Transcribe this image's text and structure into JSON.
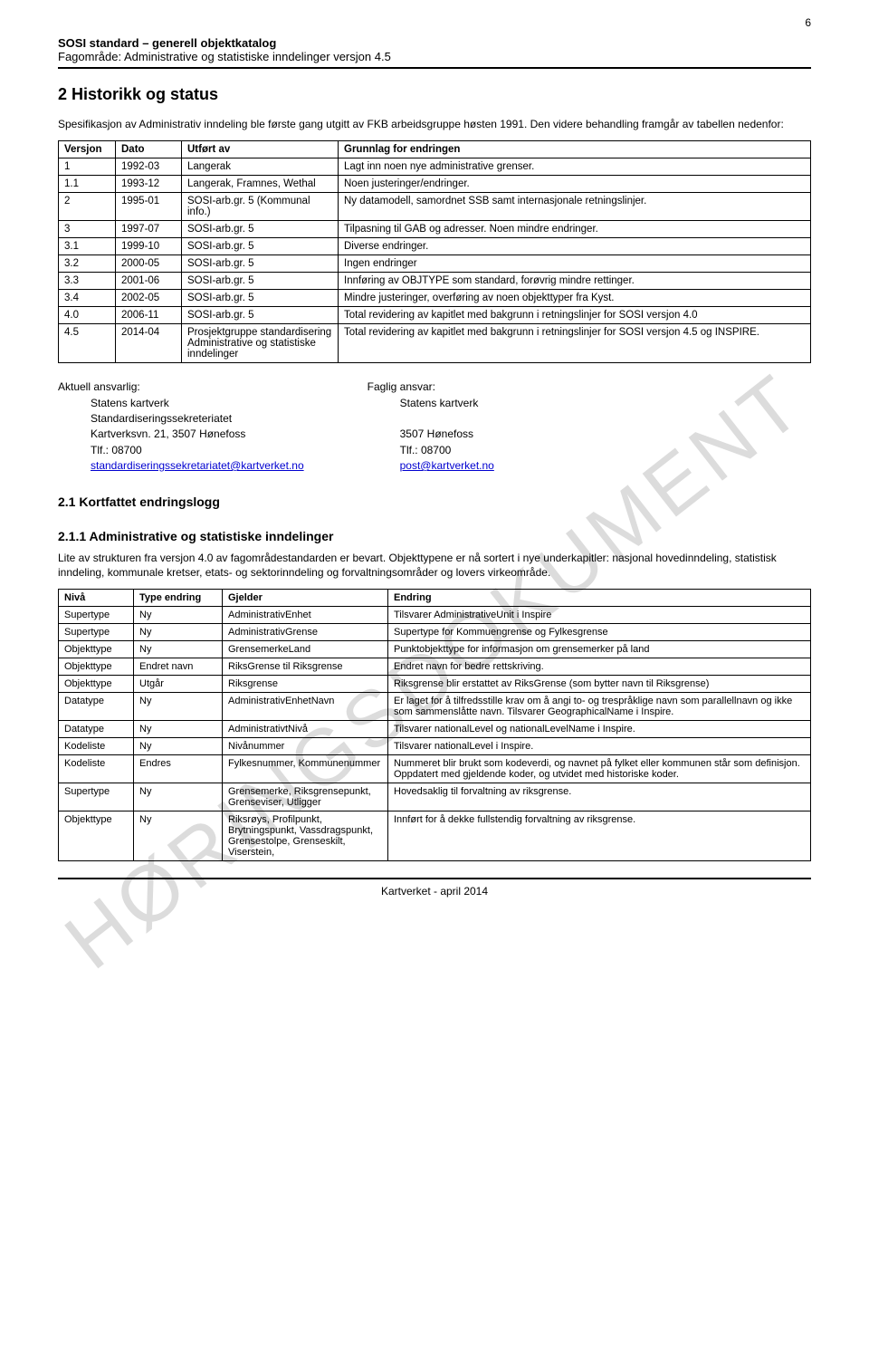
{
  "page_number": "6",
  "header": {
    "line1": "SOSI standard – generell objektkatalog",
    "line2": "Fagområde: Administrative og statistiske inndelinger versjon 4.5"
  },
  "watermark": "HØRINGSDOKUMENT",
  "section2": {
    "title": "2  Historikk og status",
    "intro": "Spesifikasjon av Administrativ inndeling ble første gang utgitt av FKB arbeidsgruppe høsten 1991. Den videre behandling framgår av tabellen nedenfor:"
  },
  "version_table": {
    "columns": [
      "Versjon",
      "Dato",
      "Utført av",
      "Grunnlag for endringen"
    ],
    "col_widths": [
      "50px",
      "60px",
      "160px",
      "auto"
    ],
    "rows": [
      [
        "1",
        "1992-03",
        "Langerak",
        "Lagt inn noen nye administrative grenser."
      ],
      [
        "1.1",
        "1993-12",
        "Langerak, Framnes, Wethal",
        "Noen justeringer/endringer."
      ],
      [
        "2",
        "1995-01",
        "SOSI-arb.gr. 5 (Kommunal info.)",
        "Ny datamodell, samordnet SSB samt internasjonale retningslinjer."
      ],
      [
        "3",
        "1997-07",
        "SOSI-arb.gr. 5",
        "Tilpasning til GAB og adresser. Noen mindre endringer."
      ],
      [
        "3.1",
        "1999-10",
        "SOSI-arb.gr. 5",
        "Diverse endringer."
      ],
      [
        "3.2",
        "2000-05",
        "SOSI-arb.gr. 5",
        "Ingen endringer"
      ],
      [
        "3.3",
        "2001-06",
        "SOSI-arb.gr. 5",
        "Innføring av OBJTYPE som standard, forøvrig mindre rettinger."
      ],
      [
        "3.4",
        "2002-05",
        "SOSI-arb.gr. 5",
        "Mindre justeringer, overføring av noen objekttyper fra Kyst."
      ],
      [
        "4.0",
        "2006-11",
        "SOSI-arb.gr. 5",
        "Total revidering av kapitlet med bakgrunn i retningslinjer for SOSI versjon 4.0"
      ],
      [
        "4.5",
        "2014-04",
        "Prosjektgruppe standardisering Administrative og statistiske inndelinger",
        "Total revidering av kapitlet med bakgrunn i retningslinjer for SOSI versjon 4.5 og INSPIRE."
      ]
    ]
  },
  "contacts": {
    "left": {
      "label": "Aktuell ansvarlig:",
      "org": "Statens kartverk",
      "dept": "Standardiseringssekreteriatet",
      "addr": "Kartverksvn. 21, 3507 Hønefoss",
      "tel": "Tlf.: 08700",
      "email": "standardiseringssekretariatet@kartverket.no"
    },
    "right": {
      "label": "Faglig ansvar:",
      "org": "Statens kartverk",
      "addr": "3507 Hønefoss",
      "tel": "Tlf.: 08700",
      "email": "post@kartverket.no"
    }
  },
  "section21": {
    "title": "2.1  Kortfattet endringslogg"
  },
  "section211": {
    "title": "2.1.1  Administrative og statistiske inndelinger",
    "para": "Lite av strukturen fra versjon 4.0 av fagområdestandarden er bevart. Objekttypene er nå sortert i nye underkapitler: nasjonal hovedinndeling, statistisk inndeling, kommunale kretser, etats- og sektorinndeling og forvaltningsområder og lovers virkeområde."
  },
  "changes_table": {
    "columns": [
      "Nivå",
      "Type endring",
      "Gjelder",
      "Endring"
    ],
    "col_widths": [
      "70px",
      "85px",
      "170px",
      "auto"
    ],
    "rows": [
      [
        "Supertype",
        "Ny",
        "AdministrativEnhet",
        "Tilsvarer AdministrativeUnit i Inspire"
      ],
      [
        "Supertype",
        "Ny",
        "AdministrativGrense",
        "Supertype for Kommuengrense og Fylkesgrense"
      ],
      [
        "Objekttype",
        "Ny",
        "GrensemerkeLand",
        "Punktobjekttype for informasjon om grensemerker på land"
      ],
      [
        "Objekttype",
        "Endret navn",
        "RiksGrense til Riksgrense",
        "Endret navn for bedre rettskriving."
      ],
      [
        "Objekttype",
        "Utgår",
        "Riksgrense",
        "Riksgrense blir erstattet av RiksGrense (som bytter navn til Riksgrense)"
      ],
      [
        "Datatype",
        "Ny",
        "AdministrativEnhetNavn",
        "Er laget for å tilfredsstille krav om å angi to- og trespråklige navn som parallellnavn og ikke som sammenslåtte navn. Tilsvarer GeographicalName i Inspire."
      ],
      [
        "Datatype",
        "Ny",
        "AdministrativtNivå",
        "Tilsvarer nationalLevel og nationalLevelName i Inspire."
      ],
      [
        "Kodeliste",
        "Ny",
        "Nivånummer",
        "Tilsvarer nationalLevel i Inspire."
      ],
      [
        "Kodeliste",
        "Endres",
        "Fylkesnummer, Kommunenummer",
        "Nummeret blir brukt som kodeverdi, og navnet på fylket eller kommunen står som definisjon. Oppdatert med gjeldende koder, og utvidet med historiske koder."
      ],
      [
        "Supertype",
        "Ny",
        "Grensemerke, Riksgrensepunkt, Grenseviser, Utligger",
        "Hovedsaklig til forvaltning av riksgrense."
      ],
      [
        "Objekttype",
        "Ny",
        "Riksrøys, Profilpunkt, Brytningspunkt, Vassdragspunkt, Grensestolpe, Grenseskilt, Viserstein,",
        "Innført for å dekke fullstendig forvaltning av riksgrense."
      ]
    ]
  },
  "footer": "Kartverket - april 2014"
}
